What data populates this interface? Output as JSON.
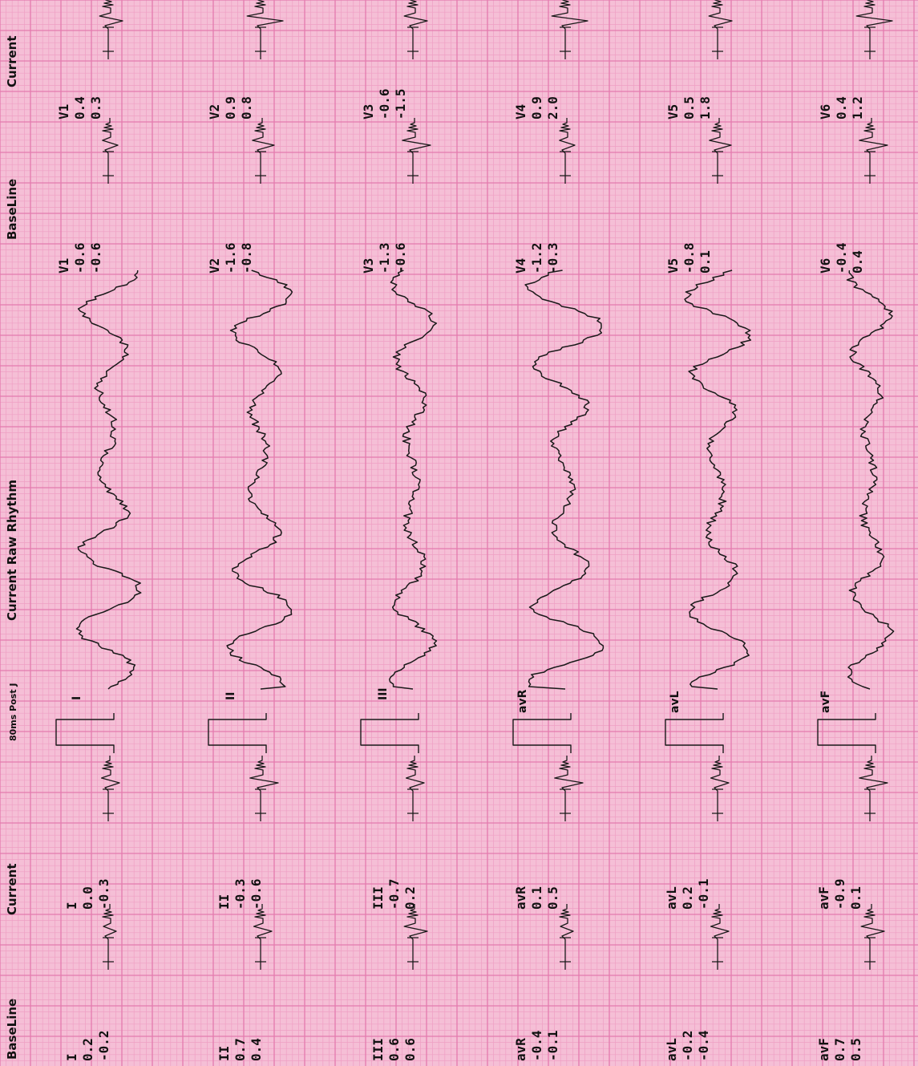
{
  "section_headers": {
    "baseline_left": "BaseLine",
    "current_left": "Current",
    "post_j": "80ms Post J",
    "raw_rhythm": "Current Raw Rhythm",
    "baseline_right": "BaseLine",
    "current_right": "Current"
  },
  "limb_leads": [
    {
      "lead": "I",
      "baseline": [
        "0.2",
        "-0.2"
      ],
      "current": [
        "0.0",
        "-0.3"
      ]
    },
    {
      "lead": "II",
      "baseline": [
        "0.7",
        "0.4"
      ],
      "current": [
        "-0.3",
        "-0.6"
      ]
    },
    {
      "lead": "III",
      "baseline": [
        "0.6",
        "0.6"
      ],
      "current": [
        "-0.7",
        "0.2"
      ]
    },
    {
      "lead": "avR",
      "baseline": [
        "-0.4",
        "-0.1"
      ],
      "current": [
        "0.1",
        "0.5"
      ]
    },
    {
      "lead": "avL",
      "baseline": [
        "-0.2",
        "-0.4"
      ],
      "current": [
        "0.2",
        "-0.1"
      ]
    },
    {
      "lead": "avF",
      "baseline": [
        "0.7",
        "0.5"
      ],
      "current": [
        "-0.9",
        "0.1"
      ]
    }
  ],
  "precordial_leads": [
    {
      "lead": "V1",
      "baseline": [
        "-0.6",
        "-0.6"
      ],
      "current": [
        "0.4",
        "0.3"
      ]
    },
    {
      "lead": "V2",
      "baseline": [
        "-1.6",
        "-0.8"
      ],
      "current": [
        "0.9",
        "0.8"
      ]
    },
    {
      "lead": "V3",
      "baseline": [
        "-1.3",
        "-0.6"
      ],
      "current": [
        "-0.6",
        "-1.5"
      ]
    },
    {
      "lead": "V4",
      "baseline": [
        "-1.2",
        "-0.3"
      ],
      "current": [
        "0.9",
        "2.0"
      ]
    },
    {
      "lead": "V5",
      "baseline": [
        "-0.8",
        "0.1"
      ],
      "current": [
        "0.5",
        "1.8"
      ]
    },
    {
      "lead": "V6",
      "baseline": [
        "-0.4",
        "0.4"
      ],
      "current": [
        "0.4",
        "1.2"
      ]
    }
  ],
  "rhythm_leads": [
    "I",
    "II",
    "III",
    "avR",
    "avL",
    "avF"
  ],
  "colors": {
    "paper": "#f5bfd6",
    "minor_grid": "#ef9fc4",
    "major_grid": "#e47aae",
    "trace": "#1a1a1a"
  }
}
